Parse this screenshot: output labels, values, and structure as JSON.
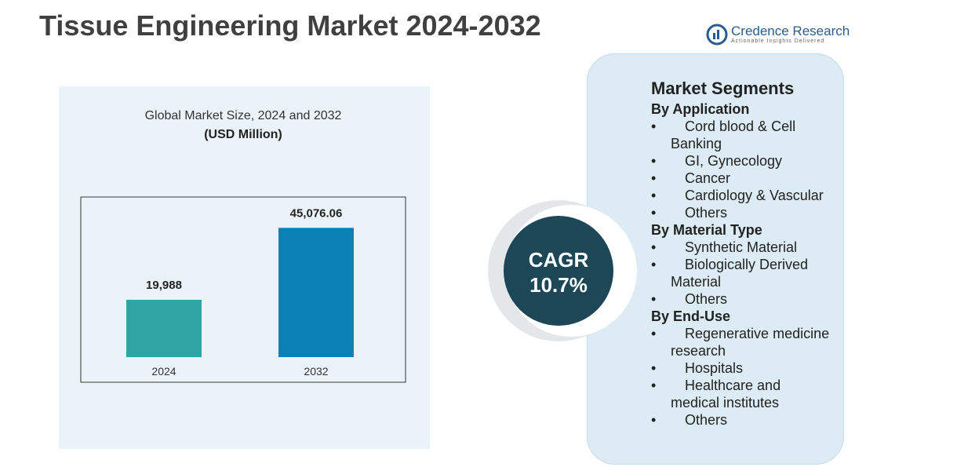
{
  "title": "Tissue Engineering Market 2024-2032",
  "logo": {
    "name": "Credence Research",
    "tagline": "Actionable Insights Delivered"
  },
  "chart_data": {
    "type": "bar",
    "title": "Global Market Size, 2024 and 2032",
    "subtitle": "(USD Million)",
    "categories": [
      "2024",
      "2032"
    ],
    "values": [
      19988,
      45076.06
    ],
    "value_labels": [
      "19,988",
      "45,076.06"
    ],
    "colors": [
      "#30a3a4",
      "#0a80b4"
    ],
    "ylim": [
      0,
      52000
    ]
  },
  "cagr": {
    "label": "CAGR",
    "value": "10.7%"
  },
  "segments": {
    "title": "Market Segments",
    "groups": [
      {
        "heading": "By Application",
        "items": [
          "Cord blood & Cell Banking",
          "GI, Gynecology",
          "Cancer",
          "Cardiology & Vascular",
          "Others"
        ]
      },
      {
        "heading": "By Material Type",
        "items": [
          "Synthetic Material",
          "Biologically Derived Material",
          "Others"
        ]
      },
      {
        "heading": "By End-Use",
        "items": [
          "Regenerative medicine research",
          "Hospitals",
          "Healthcare and medical institutes",
          "Others"
        ]
      }
    ]
  }
}
